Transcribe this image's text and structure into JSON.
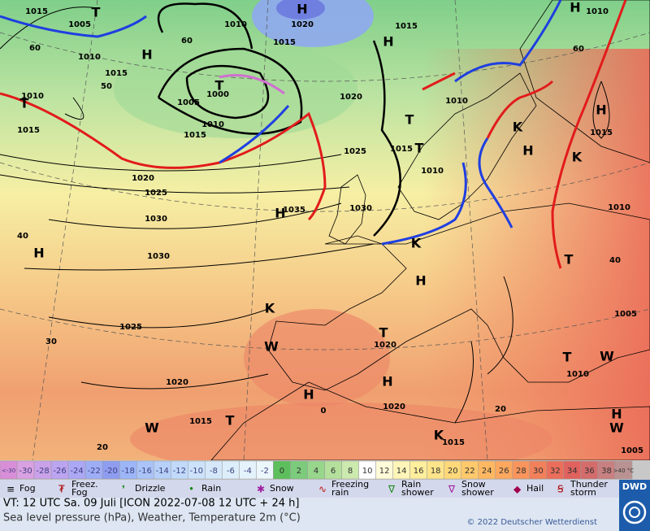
{
  "map": {
    "labels": [
      "1015",
      "T",
      "1005",
      "1010",
      "1010",
      "H",
      "1020",
      "1015",
      "H",
      "1015",
      "H",
      "1010",
      "H",
      "1015",
      "T",
      "1000",
      "1005",
      "1010",
      "1015",
      "1020",
      "1010",
      "T",
      "1015",
      "T",
      "1010",
      "H",
      "1015",
      "K",
      "H",
      "K",
      "T",
      "1015",
      "1010",
      "1025",
      "1020",
      "1025",
      "1030",
      "H",
      "1035",
      "1030",
      "1030",
      "H",
      "1010",
      "K",
      "H",
      "T",
      "K",
      "1005",
      "1025",
      "T",
      "1020",
      "W",
      "W",
      "T",
      "1010",
      "1020",
      "H",
      "H",
      "1020",
      "0",
      "1015",
      "T",
      "H",
      "W",
      "K",
      "1015",
      "1005",
      "20",
      "20",
      "30",
      "40",
      "40",
      "50",
      "60",
      "60",
      "60",
      "W"
    ]
  },
  "scale": {
    "labels": [
      "<-30",
      -30,
      -28,
      -26,
      -24,
      -22,
      -20,
      -18,
      -16,
      -14,
      -12,
      -10,
      -8,
      -6,
      -4,
      -2,
      0,
      2,
      4,
      6,
      8,
      10,
      12,
      14,
      16,
      18,
      20,
      22,
      24,
      26,
      28,
      30,
      32,
      34,
      36,
      38,
      ">40 °C"
    ],
    "colors": [
      "#d88fd8",
      "#d9a0e2",
      "#caa2ea",
      "#bba4f0",
      "#aca8f4",
      "#9eaef6",
      "#8f9df0",
      "#9cb6f8",
      "#aac4f8",
      "#b6d0f8",
      "#c2dafa",
      "#cce2fa",
      "#d4e8fa",
      "#dceefa",
      "#e4f2fb",
      "#ecf7fc",
      "#5cbf5c",
      "#7ccb7c",
      "#98d68c",
      "#b4e09c",
      "#cce9ae",
      "#ffffff",
      "#fffbd8",
      "#fff5b8",
      "#ffee9c",
      "#ffe48a",
      "#ffd87a",
      "#ffc96c",
      "#ffb862",
      "#fda85e",
      "#f8945c",
      "#f2805a",
      "#ea6e5a",
      "#e0625e",
      "#d46c6c",
      "#c88080",
      "#ba9292"
    ]
  },
  "legend": [
    "Fog",
    "Freez. Fog",
    "Drizzle",
    "Rain",
    "Snow",
    "Freezing rain",
    "Rain shower",
    "Snow shower",
    "Hail",
    "Thunder storm"
  ],
  "footer": {
    "valid_time": "VT: 12 UTC Sa.  09 Juli [ICON 2022-07-08  12 UTC + 24 h]",
    "description": "Sea level pressure (hPa), Weather, Temperature 2m (°C)",
    "copyright": "© 2022 Deutscher Wetterdienst",
    "logo": "DWD"
  }
}
